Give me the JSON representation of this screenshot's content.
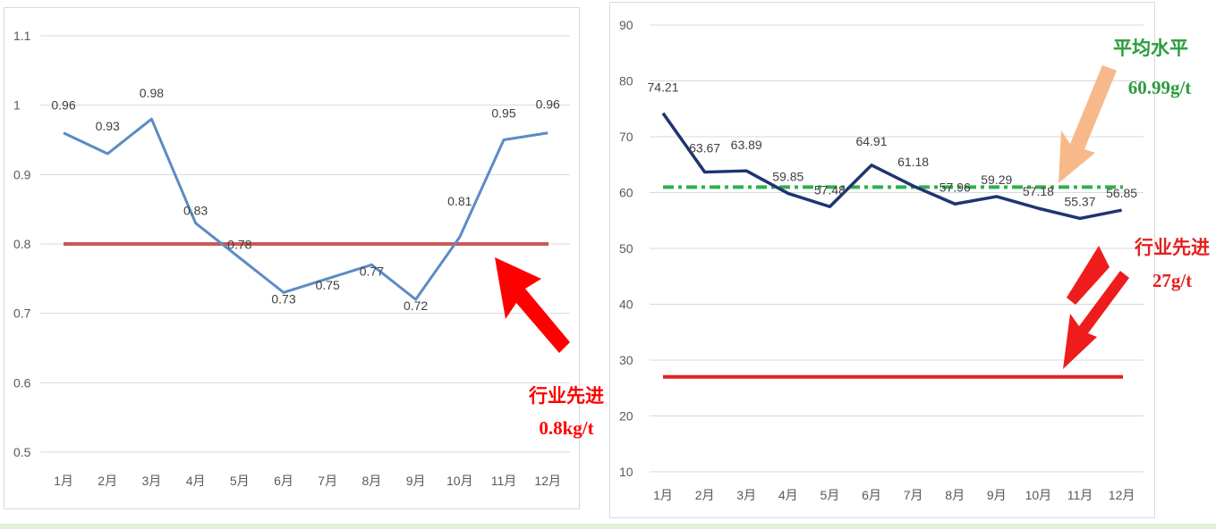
{
  "chart_data": [
    {
      "type": "line",
      "categories": [
        "1月",
        "2月",
        "3月",
        "4月",
        "5月",
        "6月",
        "7月",
        "8月",
        "9月",
        "10月",
        "11月",
        "12月"
      ],
      "series": [
        {
          "values": [
            0.96,
            0.93,
            0.98,
            0.83,
            0.78,
            0.73,
            0.75,
            0.77,
            0.72,
            0.81,
            0.95,
            0.96
          ],
          "color": "#5b8bc5"
        }
      ],
      "reference_lines": [
        {
          "value": 0.8,
          "color": "#c9585a",
          "label": [
            "行业先进",
            "0.8kg/t"
          ],
          "label_color": "#ff0000"
        }
      ],
      "ylim": [
        0.5,
        1.1
      ],
      "yticks": [
        "0.5",
        "0.6",
        "0.7",
        "0.8",
        "0.9",
        "1",
        "1.1"
      ],
      "data_labels": [
        "0.96",
        "0.93",
        "0.98",
        "0.83",
        "0.78",
        "0.73",
        "0.75",
        "0.77",
        "0.72",
        "0.81",
        "0.95",
        "0.96"
      ],
      "grid": true
    },
    {
      "type": "line",
      "categories": [
        "1月",
        "2月",
        "3月",
        "4月",
        "5月",
        "6月",
        "7月",
        "8月",
        "9月",
        "10月",
        "11月",
        "12月"
      ],
      "series": [
        {
          "values": [
            74.21,
            63.67,
            63.89,
            59.85,
            57.48,
            64.91,
            61.18,
            57.96,
            59.29,
            57.18,
            55.37,
            56.85
          ],
          "color": "#1f3470"
        }
      ],
      "reference_lines": [
        {
          "value": 60.99,
          "color": "#2db04f",
          "dashed": true,
          "label": [
            "平均水平",
            "60.99g/t"
          ],
          "label_color": "#2a9d3c"
        },
        {
          "value": 27,
          "color": "#e41f1f",
          "label": [
            "行业先进",
            "27g/t"
          ],
          "label_color": "#e41f1f"
        }
      ],
      "ylim": [
        10,
        90
      ],
      "yticks": [
        "10",
        "20",
        "30",
        "40",
        "50",
        "60",
        "70",
        "80",
        "90"
      ],
      "data_labels": [
        "74.21",
        "63.67",
        "63.89",
        "59.85",
        "57.48",
        "64.91",
        "61.18",
        "57.96",
        "59.29",
        "57.18",
        "55.37",
        "56.85"
      ],
      "grid": true
    }
  ]
}
